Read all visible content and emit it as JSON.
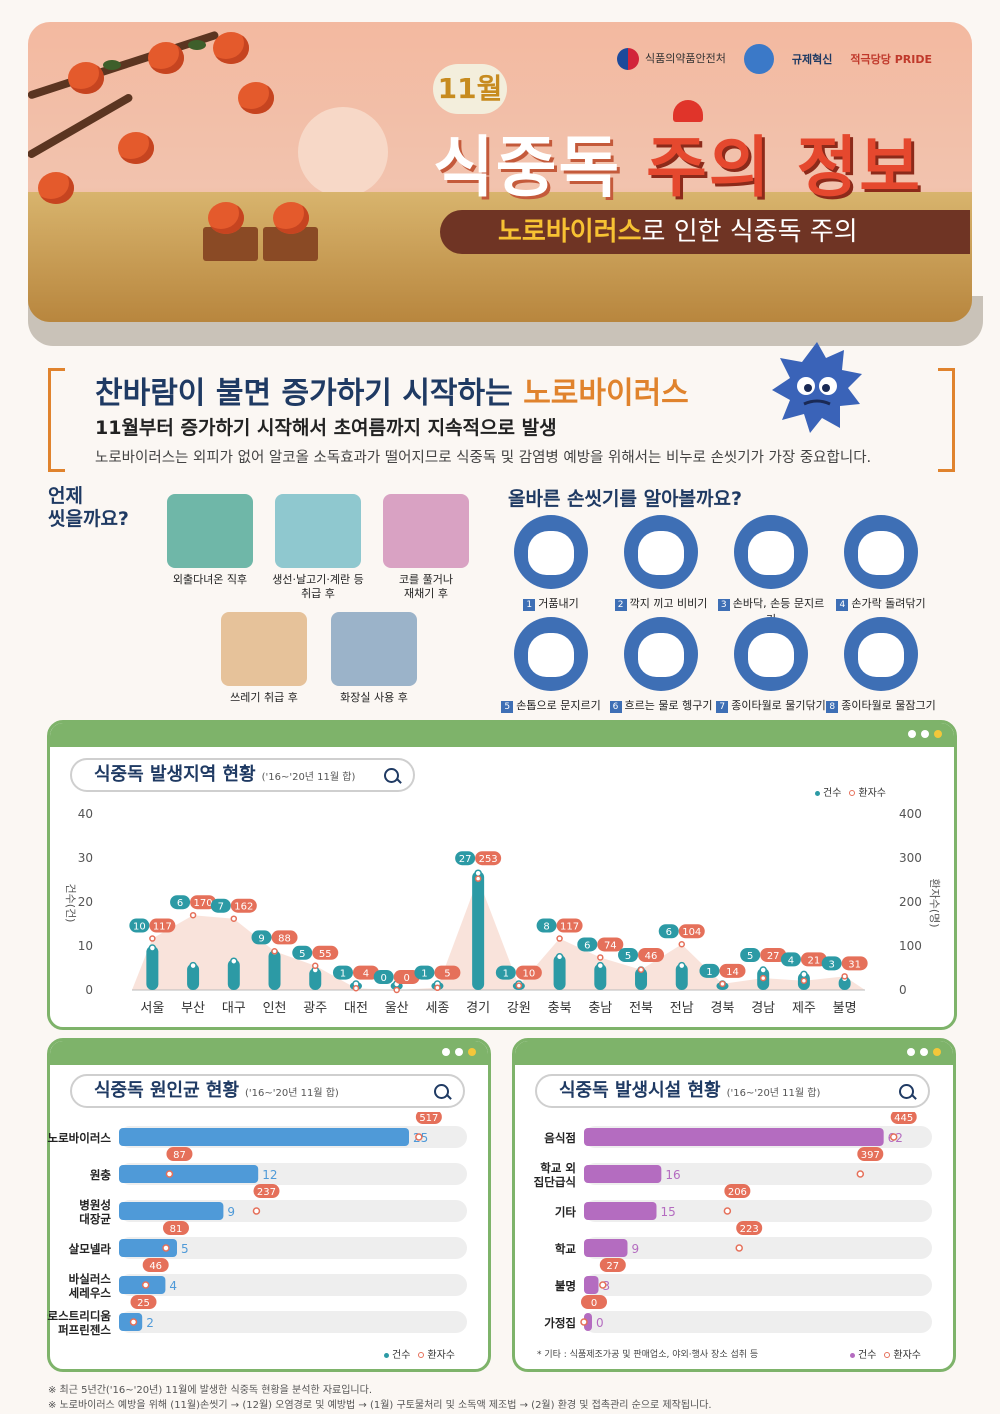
{
  "header": {
    "ministry": "식품의약품안전처",
    "logo2": "",
    "logo3": "규제혁신",
    "logo4": "적극당당 PRIDE",
    "month": "11월",
    "title_a": "식중독",
    "title_b": "주의 정보",
    "subtitle_hl": "노로바이러스",
    "subtitle_rest": "로 인한 식중독 주의"
  },
  "intro": {
    "title_a": "찬바람이 불면 증가하기 시작하는",
    "title_b": "노로바이러스",
    "subtitle": "11월부터 증가하기 시작해서 초여름까지 지속적으로 발생",
    "description": "노로바이러스는 외피가 없어 알코올 소독효과가 떨어지므로 식중독 및 감염병 예방을 위해서는 비누로 손씻기가 가장 중요합니다."
  },
  "when": {
    "title_line1": "언제",
    "title_line2": "씻을까요?",
    "items": [
      {
        "line1": "외출다녀온 직후",
        "line2": "",
        "color": "#6fb7a8"
      },
      {
        "line1": "생선·날고기·계란 등",
        "line2": "취급 후",
        "color": "#8fc8cf"
      },
      {
        "line1": "코를 풀거나",
        "line2": "재채기 후",
        "color": "#d9a2c3"
      },
      {
        "line1": "쓰레기 취급 후",
        "line2": "",
        "color": "#e6c29a"
      },
      {
        "line1": "화장실 사용 후",
        "line2": "",
        "color": "#9bb3c9"
      }
    ]
  },
  "howto": {
    "title": "올바른 손씻기를 알아볼까요?",
    "steps": [
      {
        "n": "1",
        "label": "거품내기"
      },
      {
        "n": "2",
        "label": "깍지 끼고 비비기"
      },
      {
        "n": "3",
        "label": "손바닥, 손등 문지르기"
      },
      {
        "n": "4",
        "label": "손가락 돌려닦기"
      },
      {
        "n": "5",
        "label": "손톱으로 문지르기"
      },
      {
        "n": "6",
        "label": "흐르는 물로 헹구기"
      },
      {
        "n": "7",
        "label": "종이타월로 물기닦기"
      },
      {
        "n": "8",
        "label": "종이타월로 물잠그기"
      }
    ]
  },
  "legend": {
    "cases": "건수",
    "patients": "환자수"
  },
  "colors": {
    "teal": "#2c9aa5",
    "coral": "#e5705a",
    "blue": "#4f9ad8",
    "purple": "#b46cc0",
    "green": "#7eb36a"
  },
  "chart_data": [
    {
      "type": "bar",
      "title": "식중독 발생지역 현황",
      "period": "('16~'20년 11월 합)",
      "ylabel_left": "건수(건)",
      "ylabel_right": "환자수(명)",
      "ylim_left": [
        0,
        40
      ],
      "ylim_right": [
        0,
        400
      ],
      "yticks_left": [
        "0",
        "10",
        "20",
        "30",
        "40"
      ],
      "yticks_right": [
        "0",
        "100",
        "200",
        "300",
        "400"
      ],
      "categories": [
        "서울",
        "부산",
        "대구",
        "인천",
        "광주",
        "대전",
        "울산",
        "세종",
        "경기",
        "강원",
        "충북",
        "충남",
        "전북",
        "전남",
        "경북",
        "경남",
        "제주",
        "불명"
      ],
      "series": [
        {
          "name": "건수",
          "values": [
            10,
            6,
            7,
            9,
            5,
            1,
            0,
            1,
            27,
            1,
            8,
            6,
            5,
            6,
            1,
            5,
            4,
            3
          ]
        },
        {
          "name": "환자수",
          "values": [
            117,
            170,
            162,
            88,
            55,
            4,
            0,
            5,
            253,
            10,
            117,
            74,
            46,
            104,
            14,
            27,
            21,
            31
          ]
        }
      ],
      "legend": "top-right"
    },
    {
      "type": "bar",
      "orientation": "horizontal",
      "title": "식중독 원인균 현황",
      "period": "('16~'20년 11월 합)",
      "categories": [
        {
          "line1": "노로바이러스",
          "line2": ""
        },
        {
          "line1": "원충",
          "line2": ""
        },
        {
          "line1": "병원성",
          "line2": "대장균"
        },
        {
          "line1": "살모넬라",
          "line2": ""
        },
        {
          "line1": "바실러스",
          "line2": "세레우스"
        },
        {
          "line1": "클로스트리디움",
          "line2": "퍼프린젠스"
        }
      ],
      "series": [
        {
          "name": "건수",
          "values": [
            25,
            12,
            9,
            5,
            4,
            2
          ]
        },
        {
          "name": "환자수",
          "values": [
            517,
            87,
            237,
            81,
            46,
            25
          ]
        }
      ],
      "xlim_cases": [
        0,
        30
      ],
      "xlim_patients": [
        0,
        600
      ]
    },
    {
      "type": "bar",
      "orientation": "horizontal",
      "title": "식중독 발생시설 현황",
      "period": "('16~'20년 11월 합)",
      "categories": [
        {
          "line1": "음식점",
          "line2": ""
        },
        {
          "line1": "학교 외",
          "line2": "집단급식"
        },
        {
          "line1": "기타",
          "line2": ""
        },
        {
          "line1": "학교",
          "line2": ""
        },
        {
          "line1": "불명",
          "line2": ""
        },
        {
          "line1": "가정집",
          "line2": ""
        }
      ],
      "series": [
        {
          "name": "건수",
          "values": [
            62,
            16,
            15,
            9,
            3,
            0
          ]
        },
        {
          "name": "환자수",
          "values": [
            445,
            397,
            206,
            223,
            27,
            0
          ]
        }
      ],
      "xlim_cases": [
        0,
        72
      ],
      "xlim_patients": [
        0,
        500
      ],
      "note": "* 기타 : 식품제조가공 및 판매업소, 야외·행사 장소 섭취 등"
    }
  ],
  "footnotes": [
    "※ 최근 5년간('16~'20년) 11월에 발생한 식중독 현황을 분석한 자료입니다.",
    "※ 노로바이러스 예방을 위해 (11월)손씻기 → (12월) 오염경로 및 예방법 → (1월) 구토물처리 및 소독액 제조법 → (2월) 환경 및 접촉관리 순으로 제작됩니다."
  ]
}
